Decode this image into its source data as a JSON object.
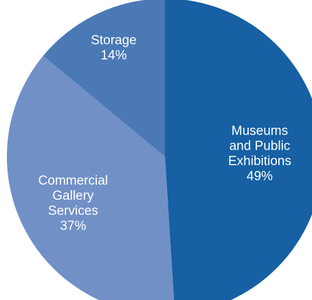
{
  "chart_data": {
    "type": "pie",
    "title": "",
    "start_angle_deg": 0,
    "direction": "clockwise",
    "slices": [
      {
        "label_lines": [
          "Museums",
          "and Public",
          "Exhibitions"
        ],
        "value": 49,
        "value_label": "49%",
        "color": "#1660a3"
      },
      {
        "label_lines": [
          "Commercial",
          "Gallery",
          "Services"
        ],
        "value": 37,
        "value_label": "37%",
        "color": "#7190c6"
      },
      {
        "label_lines": [
          "Storage"
        ],
        "value": 14,
        "value_label": "14%",
        "color": "#4a79b6"
      }
    ],
    "label_color": "#ffffff"
  }
}
